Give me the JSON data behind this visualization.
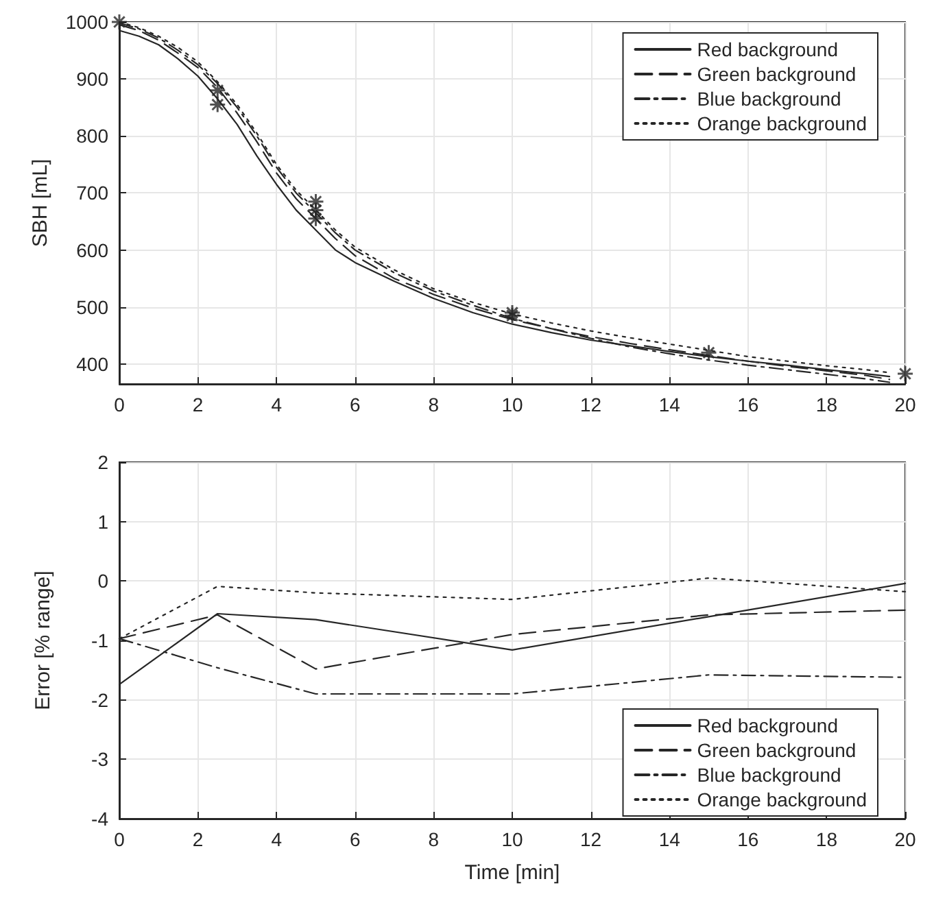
{
  "chart_data": [
    {
      "type": "line",
      "ylabel": "SBH [mL]",
      "x": [
        0,
        0.5,
        1,
        1.5,
        2,
        2.5,
        3,
        3.5,
        4,
        4.5,
        5,
        5.5,
        6,
        7,
        8,
        9,
        10,
        11,
        12,
        13,
        14,
        15,
        16,
        17,
        18,
        19,
        19.6
      ],
      "xlim": [
        0,
        20
      ],
      "xticks": [
        0,
        2,
        4,
        6,
        8,
        10,
        12,
        14,
        16,
        18,
        20
      ],
      "ylim": [
        365,
        1000
      ],
      "yticks": [
        400,
        500,
        600,
        700,
        800,
        900,
        1000
      ],
      "grid": true,
      "legend": "top right",
      "series": [
        {
          "name": "Red background",
          "color": "#262626",
          "line_style": "solid",
          "values": [
            985,
            975,
            960,
            935,
            905,
            865,
            820,
            765,
            715,
            670,
            635,
            600,
            578,
            545,
            515,
            490,
            470,
            455,
            442,
            432,
            422,
            413,
            405,
            398,
            390,
            383,
            378
          ]
        },
        {
          "name": "Green background",
          "color": "#262626",
          "line_style": "dashed",
          "values": [
            995,
            985,
            968,
            945,
            920,
            885,
            840,
            790,
            735,
            690,
            655,
            620,
            590,
            550,
            522,
            498,
            478,
            462,
            448,
            436,
            425,
            415,
            405,
            396,
            388,
            380,
            373
          ]
        },
        {
          "name": "Blue background",
          "color": "#262626",
          "line_style": "dashdot",
          "values": [
            998,
            988,
            972,
            950,
            925,
            892,
            850,
            800,
            745,
            700,
            665,
            630,
            600,
            560,
            528,
            503,
            480,
            462,
            445,
            430,
            418,
            407,
            398,
            390,
            382,
            374,
            368
          ]
        },
        {
          "name": "Orange background",
          "color": "#262626",
          "line_style": "dotted",
          "values": [
            1000,
            990,
            975,
            955,
            930,
            895,
            855,
            805,
            750,
            705,
            670,
            635,
            605,
            565,
            532,
            508,
            488,
            472,
            458,
            446,
            435,
            424,
            413,
            405,
            397,
            390,
            385
          ]
        },
        {
          "type": "scatter",
          "color": "#262626",
          "marker": "cross",
          "x": [
            0,
            2.5,
            2.5,
            5,
            5,
            5,
            10,
            10,
            15,
            20
          ],
          "values": [
            1000,
            880,
            855,
            685,
            670,
            655,
            490,
            485,
            420,
            383
          ]
        }
      ]
    },
    {
      "type": "line",
      "xlabel": "Time [min]",
      "ylabel": "Error [% range]",
      "x": [
        0,
        2.5,
        5,
        10,
        15,
        20
      ],
      "xlim": [
        0,
        20
      ],
      "xticks": [
        0,
        2,
        4,
        6,
        8,
        10,
        12,
        14,
        16,
        18,
        20
      ],
      "ylim": [
        -4,
        2
      ],
      "yticks": [
        -4,
        -3,
        -2,
        -1,
        0,
        1,
        2
      ],
      "grid": true,
      "legend": "bottom right",
      "series": [
        {
          "name": "Red background",
          "color": "#262626",
          "line_style": "solid",
          "values": [
            -1.74,
            -0.55,
            -0.65,
            -1.16,
            -0.6,
            -0.04
          ]
        },
        {
          "name": "Green background",
          "color": "#262626",
          "line_style": "dashed",
          "values": [
            -0.97,
            -0.57,
            -1.48,
            -0.9,
            -0.57,
            -0.49
          ]
        },
        {
          "name": "Blue background",
          "color": "#262626",
          "line_style": "dashdot",
          "values": [
            -0.97,
            -1.46,
            -1.9,
            -1.9,
            -1.58,
            -1.62
          ]
        },
        {
          "name": "Orange background",
          "color": "#262626",
          "line_style": "dotted",
          "values": [
            -0.97,
            -0.09,
            -0.2,
            -0.31,
            0.05,
            -0.18
          ]
        }
      ]
    }
  ]
}
